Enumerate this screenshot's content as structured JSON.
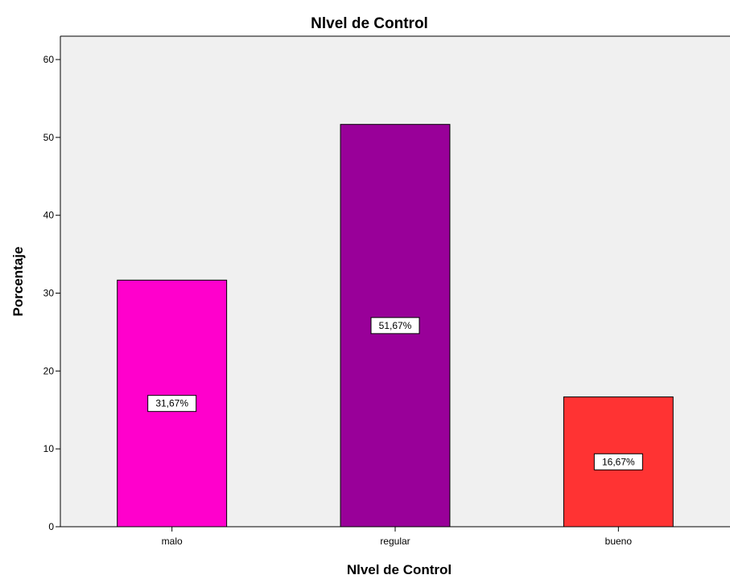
{
  "chart_data": {
    "type": "bar",
    "title": "Nlvel de Control",
    "xlabel": "Nlvel de Control",
    "ylabel": "Porcentaje",
    "categories": [
      "malo",
      "regular",
      "bueno"
    ],
    "values": [
      31.67,
      51.67,
      16.67
    ],
    "data_labels": [
      "31,67%",
      "51,67%",
      "16,67%"
    ],
    "colors": [
      "#ff00cc",
      "#990099",
      "#ff3333"
    ],
    "plot_background": "#f0f0f0",
    "ylim": [
      0,
      63
    ],
    "yticks": [
      0,
      10,
      20,
      30,
      40,
      50,
      60
    ],
    "grid": false,
    "legend": "none"
  }
}
